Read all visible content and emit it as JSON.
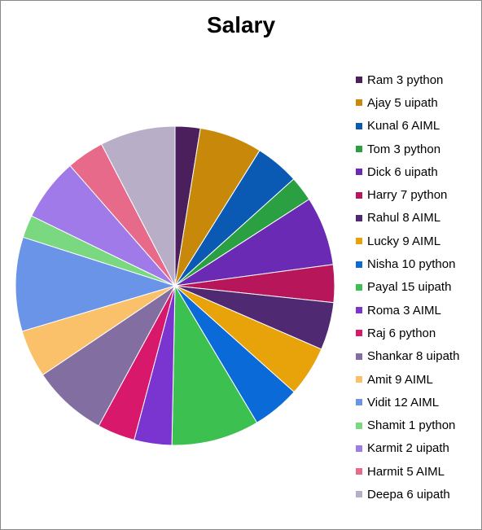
{
  "chart_data": {
    "type": "pie",
    "title": "Salary",
    "legend_position": "right",
    "categories": [
      "Ram 3 python",
      "Ajay 5 uipath",
      "Kunal 6 AIML",
      "Tom 3 python",
      "Dick 6 uipath",
      "Harry 7 python",
      "Rahul 8 AIML",
      "Lucky 9 AIML",
      "Nisha 10 python",
      "Payal 15 uipath",
      "Roma 3 AIML",
      "Raj 6 python",
      "Shankar 8 uipath",
      "Amit 9 AIML",
      "Vidit 12 AIML",
      "Shamit 1 python",
      "Karmit 2 uipath",
      "Harmit 5 AIML",
      "Deepa 6 uipath"
    ],
    "values": [
      20000,
      50000,
      35000,
      20000,
      55000,
      30000,
      38000,
      40000,
      38000,
      70000,
      30000,
      30000,
      60000,
      38000,
      75000,
      18000,
      50000,
      30000,
      60000
    ],
    "colors": [
      "#4B1F5C",
      "#C8890A",
      "#0A5AB4",
      "#2AA042",
      "#6A2AB4",
      "#B8165A",
      "#4F2A72",
      "#E8A20A",
      "#0A6AD8",
      "#3CC050",
      "#7A34D0",
      "#D8186A",
      "#826EA0",
      "#FAC06A",
      "#6A94E8",
      "#7AD880",
      "#A07AE8",
      "#E86A8A",
      "#B8AEC8"
    ]
  }
}
